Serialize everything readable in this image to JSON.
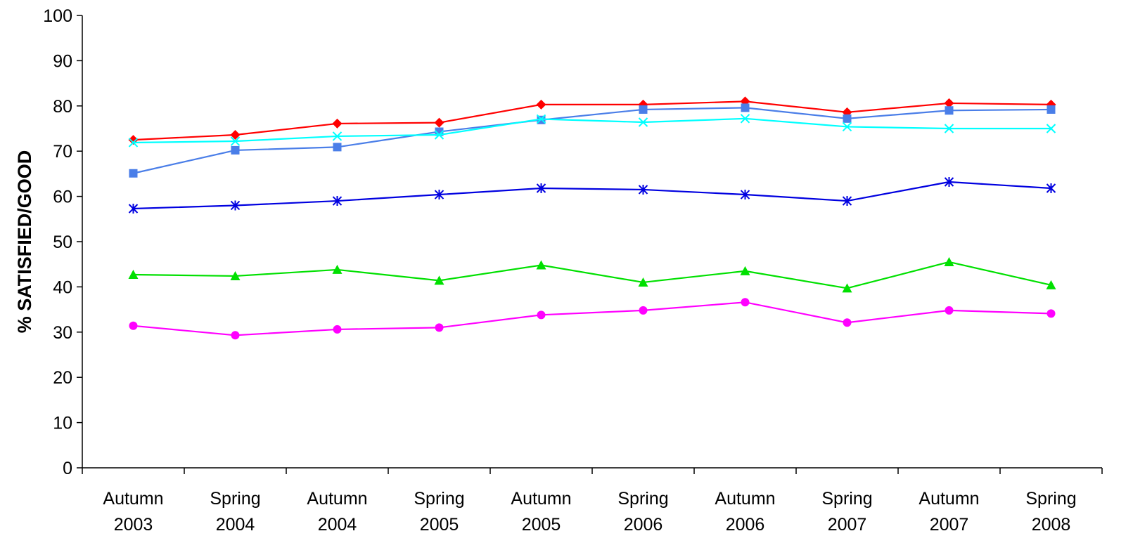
{
  "chart_data": {
    "type": "line",
    "title": "",
    "xlabel": "",
    "ylabel": "% SATISFIED/GOOD",
    "ylim": [
      0,
      100
    ],
    "yticks": [
      0,
      10,
      20,
      30,
      40,
      50,
      60,
      70,
      80,
      90,
      100
    ],
    "grid": false,
    "legend": "none",
    "categories": [
      [
        "Autumn",
        "2003"
      ],
      [
        "Spring",
        "2004"
      ],
      [
        "Autumn",
        "2004"
      ],
      [
        "Spring",
        "2005"
      ],
      [
        "Autumn",
        "2005"
      ],
      [
        "Spring",
        "2006"
      ],
      [
        "Autumn",
        "2006"
      ],
      [
        "Spring",
        "2007"
      ],
      [
        "Autumn",
        "2007"
      ],
      [
        "Spring",
        "2008"
      ]
    ],
    "series": [
      {
        "color": "#ff0000",
        "marker": "diamond",
        "values": [
          72.5,
          73.6,
          76.1,
          76.3,
          80.3,
          80.3,
          81.0,
          78.6,
          80.6,
          80.3
        ]
      },
      {
        "color": "#4a7ee8",
        "marker": "square",
        "values": [
          65.1,
          70.2,
          70.9,
          74.3,
          76.9,
          79.2,
          79.6,
          77.2,
          79.0,
          79.2
        ]
      },
      {
        "color": "#00ffff",
        "marker": "x",
        "values": [
          71.9,
          72.2,
          73.3,
          73.6,
          77.1,
          76.4,
          77.2,
          75.4,
          75.0,
          75.0
        ]
      },
      {
        "color": "#0000e0",
        "marker": "star",
        "values": [
          57.3,
          58.0,
          59.0,
          60.4,
          61.8,
          61.5,
          60.4,
          59.0,
          63.2,
          61.8
        ]
      },
      {
        "color": "#00e000",
        "marker": "triangle",
        "values": [
          42.7,
          42.4,
          43.8,
          41.4,
          44.8,
          41.0,
          43.5,
          39.7,
          45.5,
          40.4
        ]
      },
      {
        "color": "#ff00ff",
        "marker": "circle",
        "values": [
          31.4,
          29.3,
          30.6,
          31.0,
          33.8,
          34.8,
          36.6,
          32.1,
          34.8,
          34.1
        ]
      }
    ]
  }
}
